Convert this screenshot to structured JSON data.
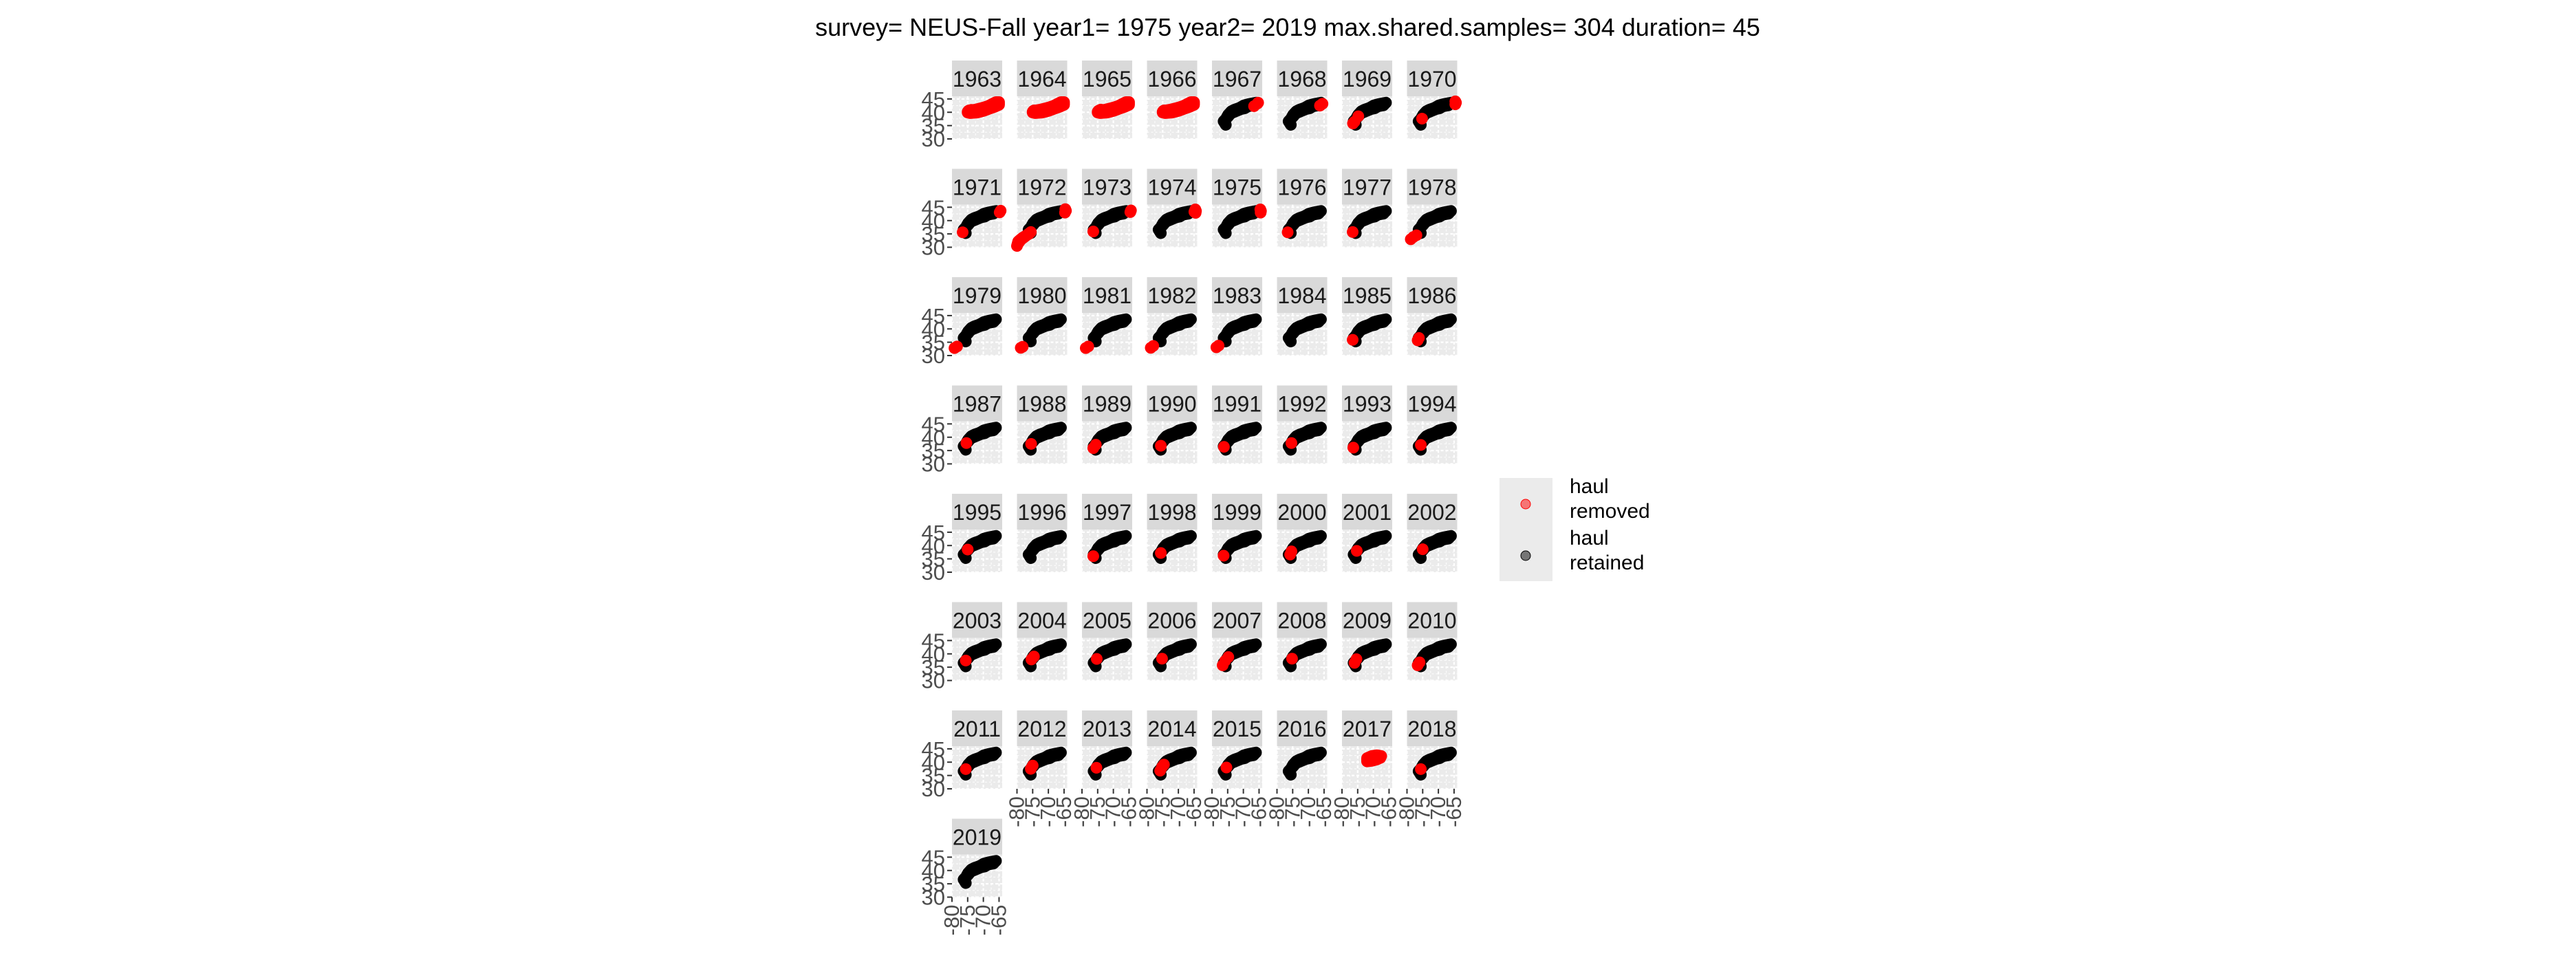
{
  "chart_data": {
    "type": "scatter",
    "title": "survey= NEUS-Fall year1= 1975 year2= 2019 max.shared.samples= 304 duration= 45",
    "xlabel": "",
    "ylabel": "",
    "x_ticks": [
      "-80",
      "-75",
      "-70",
      "-65"
    ],
    "y_ticks": [
      "45",
      "40",
      "35",
      "30"
    ],
    "xlim": [
      -80,
      -64
    ],
    "ylim": [
      30,
      46
    ],
    "grid": true,
    "facet_columns": 8,
    "legend": {
      "position": "right",
      "entries": [
        {
          "key": "removed",
          "label_line1": "haul",
          "label_line2": "removed",
          "color": "#ff0000"
        },
        {
          "key": "retained",
          "label_line1": "haul",
          "label_line2": "retained",
          "color": "#000000"
        }
      ]
    },
    "colors": {
      "removed": "#ff0000",
      "retained": "#000000",
      "strip": "#d9d9d9",
      "panel": "#ebebeb",
      "grid": "#ffffff"
    },
    "shapes": {
      "coast": [
        [
          -75.6,
          35.3
        ],
        [
          -76.3,
          36.6
        ],
        [
          -75.0,
          38.2
        ],
        [
          -74.0,
          39.6
        ],
        [
          -72.0,
          40.6
        ],
        [
          -70.8,
          41.2
        ],
        [
          -69.6,
          41.5
        ],
        [
          -68.6,
          42.2
        ],
        [
          -66.8,
          42.6
        ],
        [
          -66.0,
          43.6
        ],
        [
          -66.9,
          43.4
        ],
        [
          -68.5,
          43.0
        ],
        [
          -69.8,
          42.6
        ],
        [
          -70.5,
          42.1
        ],
        [
          -71.3,
          41.6
        ],
        [
          -72.8,
          41.0
        ],
        [
          -73.8,
          40.4
        ],
        [
          -74.9,
          39.0
        ],
        [
          -75.6,
          37.4
        ],
        [
          -76.0,
          36.2
        ]
      ],
      "early": [
        [
          -74.8,
          40.5
        ],
        [
          -72.5,
          41.0
        ],
        [
          -70.5,
          41.6
        ],
        [
          -68.5,
          42.3
        ],
        [
          -67.0,
          43.2
        ],
        [
          -66.0,
          43.8
        ],
        [
          -65.0,
          43.8
        ],
        [
          -65.0,
          42.8
        ],
        [
          -66.5,
          42.0
        ],
        [
          -68.0,
          41.4
        ],
        [
          -70.0,
          40.5
        ],
        [
          -72.0,
          39.9
        ],
        [
          -74.2,
          39.7
        ],
        [
          -75.0,
          39.9
        ]
      ],
      "southern": [
        [
          -80.0,
          30.5
        ],
        [
          -79.6,
          32.2
        ],
        [
          -78.2,
          33.6
        ],
        [
          -76.2,
          35.0
        ],
        [
          -75.6,
          35.7
        ],
        [
          -76.8,
          34.6
        ],
        [
          -78.8,
          32.8
        ],
        [
          -79.8,
          31.2
        ]
      ],
      "late2017": [
        [
          -72.0,
          40.3
        ],
        [
          -70.5,
          40.5
        ],
        [
          -69.0,
          41.0
        ],
        [
          -67.8,
          41.6
        ],
        [
          -67.5,
          42.3
        ],
        [
          -68.8,
          42.6
        ],
        [
          -70.5,
          42.3
        ],
        [
          -72.0,
          41.5
        ]
      ]
    },
    "panels": [
      {
        "year": "1963",
        "overlay": "early",
        "removed": [
          [
            -75,
            40.2
          ],
          [
            -74.5,
            40.7
          ],
          [
            -73.8,
            40.9
          ]
        ]
      },
      {
        "year": "1964",
        "overlay": "early",
        "removed": [
          [
            -75,
            40.2
          ],
          [
            -74.5,
            40.7
          ]
        ]
      },
      {
        "year": "1965",
        "overlay": "early",
        "removed": [
          [
            -75,
            40.2
          ],
          [
            -74.5,
            40.7
          ],
          [
            -74.0,
            41.0
          ]
        ]
      },
      {
        "year": "1966",
        "overlay": "early",
        "removed": [
          [
            -75,
            40.2
          ],
          [
            -74.5,
            40.7
          ]
        ]
      },
      {
        "year": "1967",
        "retained": "coast",
        "removed": [
          [
            -66.6,
            42.3
          ],
          [
            -65.5,
            43.3
          ],
          [
            -65.3,
            43.6
          ]
        ]
      },
      {
        "year": "1968",
        "retained": "coast",
        "removed": [
          [
            -66.3,
            42.5
          ],
          [
            -65.5,
            43.2
          ]
        ]
      },
      {
        "year": "1969",
        "retained": "coast",
        "removed": [
          [
            -76.5,
            35.8
          ],
          [
            -76.0,
            36.5
          ],
          [
            -74.8,
            38.5
          ]
        ]
      },
      {
        "year": "1970",
        "retained": "coast",
        "removed": [
          [
            -64.6,
            43.0
          ],
          [
            -64.4,
            43.6
          ],
          [
            -64.6,
            44.1
          ],
          [
            -75.2,
            37.6
          ]
        ]
      },
      {
        "year": "1971",
        "retained": "coast",
        "removed": [
          [
            -76.6,
            35.6
          ],
          [
            -64.8,
            43.1
          ],
          [
            -64.5,
            43.7
          ]
        ]
      },
      {
        "year": "1972",
        "retained": "coast",
        "overlay": "southern",
        "removed": [
          [
            -64.7,
            43.0
          ],
          [
            -64.4,
            43.7
          ],
          [
            -64.6,
            44.3
          ]
        ]
      },
      {
        "year": "1973",
        "retained": "coast",
        "removed": [
          [
            -76.4,
            35.9
          ],
          [
            -64.6,
            43.2
          ],
          [
            -64.4,
            43.8
          ]
        ]
      },
      {
        "year": "1974",
        "retained": "coast",
        "removed": [
          [
            -64.5,
            42.9
          ],
          [
            -64.4,
            43.6
          ],
          [
            -64.6,
            44.2
          ],
          [
            -64.9,
            43.3
          ]
        ]
      },
      {
        "year": "1975",
        "retained": "coast",
        "removed": [
          [
            -64.5,
            43.0
          ],
          [
            -64.4,
            43.6
          ],
          [
            -64.6,
            44.2
          ]
        ]
      },
      {
        "year": "1976",
        "retained": "coast",
        "removed": [
          [
            -76.6,
            35.6
          ]
        ]
      },
      {
        "year": "1977",
        "retained": "coast",
        "removed": [
          [
            -76.6,
            35.7
          ]
        ]
      },
      {
        "year": "1978",
        "retained": "coast",
        "removed": [
          [
            -78.8,
            33.0
          ],
          [
            -78.0,
            33.8
          ],
          [
            -77.0,
            34.5
          ]
        ]
      },
      {
        "year": "1979",
        "retained": "coast",
        "removed": [
          [
            -79.2,
            32.8
          ],
          [
            -78.4,
            33.4
          ]
        ]
      },
      {
        "year": "1980",
        "retained": "coast",
        "removed": [
          [
            -78.8,
            32.9
          ],
          [
            -78.2,
            33.3
          ]
        ]
      },
      {
        "year": "1981",
        "retained": "coast",
        "removed": [
          [
            -78.8,
            32.8
          ],
          [
            -78.0,
            33.4
          ]
        ]
      },
      {
        "year": "1982",
        "retained": "coast",
        "removed": [
          [
            -78.8,
            32.9
          ],
          [
            -78.0,
            33.6
          ]
        ]
      },
      {
        "year": "1983",
        "retained": "coast",
        "removed": [
          [
            -78.6,
            33.1
          ],
          [
            -77.9,
            33.7
          ]
        ]
      },
      {
        "year": "1984",
        "retained": "coast",
        "removed": []
      },
      {
        "year": "1985",
        "retained": "coast",
        "removed": [
          [
            -76.6,
            35.9
          ]
        ]
      },
      {
        "year": "1986",
        "retained": "coast",
        "removed": [
          [
            -76.6,
            35.7
          ],
          [
            -76.2,
            36.6
          ]
        ]
      },
      {
        "year": "1987",
        "retained": "coast",
        "removed": [
          [
            -75.4,
            37.8
          ]
        ]
      },
      {
        "year": "1988",
        "retained": "coast",
        "removed": [
          [
            -75.5,
            37.5
          ]
        ]
      },
      {
        "year": "1989",
        "retained": "coast",
        "removed": [
          [
            -76.4,
            35.9
          ],
          [
            -75.6,
            37.2
          ]
        ]
      },
      {
        "year": "1990",
        "retained": "coast",
        "removed": [
          [
            -75.6,
            36.8
          ]
        ]
      },
      {
        "year": "1991",
        "retained": "coast",
        "removed": [
          [
            -76.2,
            36.4
          ]
        ]
      },
      {
        "year": "1992",
        "retained": "coast",
        "removed": [
          [
            -75.4,
            37.8
          ]
        ]
      },
      {
        "year": "1993",
        "retained": "coast",
        "removed": [
          [
            -76.4,
            36.1
          ]
        ]
      },
      {
        "year": "1994",
        "retained": "coast",
        "removed": [
          [
            -75.6,
            37.1
          ]
        ]
      },
      {
        "year": "1995",
        "retained": "coast",
        "removed": [
          [
            -75.0,
            38.5
          ]
        ]
      },
      {
        "year": "1996",
        "retained": "coast",
        "removed": []
      },
      {
        "year": "1997",
        "retained": "coast",
        "removed": [
          [
            -76.4,
            36.0
          ]
        ]
      },
      {
        "year": "1998",
        "retained": "coast",
        "removed": [
          [
            -75.6,
            37.2
          ]
        ]
      },
      {
        "year": "1999",
        "retained": "coast",
        "removed": [
          [
            -76.3,
            36.2
          ]
        ]
      },
      {
        "year": "2000",
        "retained": "coast",
        "removed": [
          [
            -75.8,
            36.6
          ],
          [
            -75.4,
            37.8
          ]
        ]
      },
      {
        "year": "2001",
        "retained": "coast",
        "removed": [
          [
            -75.3,
            38.0
          ]
        ]
      },
      {
        "year": "2002",
        "retained": "coast",
        "removed": [
          [
            -75.0,
            38.6
          ]
        ]
      },
      {
        "year": "2003",
        "retained": "coast",
        "removed": [
          [
            -75.6,
            37.5
          ]
        ]
      },
      {
        "year": "2004",
        "retained": "coast",
        "removed": [
          [
            -75.4,
            37.9
          ],
          [
            -74.6,
            39.0
          ]
        ]
      },
      {
        "year": "2005",
        "retained": "coast",
        "removed": [
          [
            -75.3,
            38.1
          ]
        ]
      },
      {
        "year": "2006",
        "retained": "coast",
        "removed": [
          [
            -75.2,
            38.2
          ]
        ]
      },
      {
        "year": "2007",
        "retained": "coast",
        "removed": [
          [
            -76.6,
            35.7
          ],
          [
            -75.8,
            37.4
          ],
          [
            -74.8,
            38.8
          ]
        ]
      },
      {
        "year": "2008",
        "retained": "coast",
        "removed": [
          [
            -75.2,
            38.2
          ]
        ]
      },
      {
        "year": "2009",
        "retained": "coast",
        "removed": [
          [
            -76.0,
            36.6
          ],
          [
            -75.4,
            38.0
          ]
        ]
      },
      {
        "year": "2010",
        "retained": "coast",
        "removed": [
          [
            -76.6,
            35.7
          ],
          [
            -76.0,
            36.8
          ]
        ]
      },
      {
        "year": "2011",
        "retained": "coast",
        "removed": [
          [
            -75.6,
            37.4
          ]
        ]
      },
      {
        "year": "2012",
        "retained": "coast",
        "removed": [
          [
            -75.6,
            37.5
          ],
          [
            -75.0,
            38.7
          ]
        ]
      },
      {
        "year": "2013",
        "retained": "coast",
        "removed": [
          [
            -75.4,
            37.9
          ]
        ]
      },
      {
        "year": "2014",
        "retained": "coast",
        "removed": [
          [
            -75.8,
            36.8
          ],
          [
            -75.2,
            38.2
          ],
          [
            -74.6,
            39.1
          ]
        ]
      },
      {
        "year": "2015",
        "retained": "coast",
        "removed": [
          [
            -75.4,
            38.0
          ]
        ]
      },
      {
        "year": "2016",
        "retained": "coast",
        "removed": []
      },
      {
        "year": "2017",
        "overlay": "late2017",
        "removed": []
      },
      {
        "year": "2018",
        "retained": "coast",
        "removed": [
          [
            -75.6,
            37.4
          ]
        ]
      },
      {
        "year": "2019",
        "retained": "coast",
        "removed": []
      }
    ]
  }
}
